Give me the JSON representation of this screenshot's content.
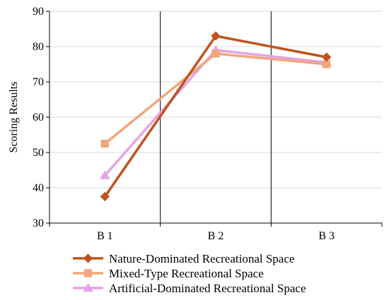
{
  "chart_data": {
    "type": "line",
    "categories": [
      "B 1",
      "B 2",
      "B 3"
    ],
    "ylabel": "Scoring Results",
    "xlabel": "",
    "ylim": [
      30,
      90
    ],
    "yticks": [
      30,
      40,
      50,
      60,
      70,
      80,
      90
    ],
    "grid": true,
    "legend_position": "bottom",
    "series": [
      {
        "name": "Nature-Dominated Recreational Space",
        "values": [
          37.5,
          83.0,
          77.0
        ],
        "color": "#c0531c",
        "marker": "diamond"
      },
      {
        "name": "Mixed-Type Recreational Space",
        "values": [
          52.5,
          78.0,
          75.0
        ],
        "color": "#f0a77c",
        "marker": "square"
      },
      {
        "name": "Artificial-Dominated Recreational Space",
        "values": [
          43.5,
          79.0,
          75.5
        ],
        "color": "#e4a3e4",
        "marker": "triangle"
      }
    ]
  }
}
